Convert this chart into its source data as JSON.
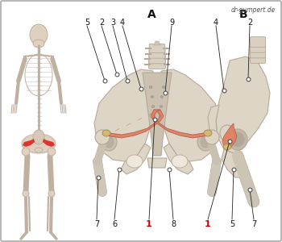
{
  "watermark": "dr-gumpert.de",
  "bg_color": "#ffffff",
  "border_color": "#999999",
  "muscle_color": "#d96b50",
  "muscle_color2": "#e08060",
  "tendon_color": "#d4b878",
  "bone_color": "#ddd5c5",
  "bone_edge": "#b8a898",
  "bone_dark": "#c8bfb0",
  "sacrum_color": "#ccc0b0",
  "red_label": "#cc0000",
  "black_label": "#111111",
  "line_color": "#222222",
  "dot_face": "#ffffff",
  "dot_edge": "#444444",
  "fig_width": 3.5,
  "fig_height": 3.0,
  "dpi": 100
}
